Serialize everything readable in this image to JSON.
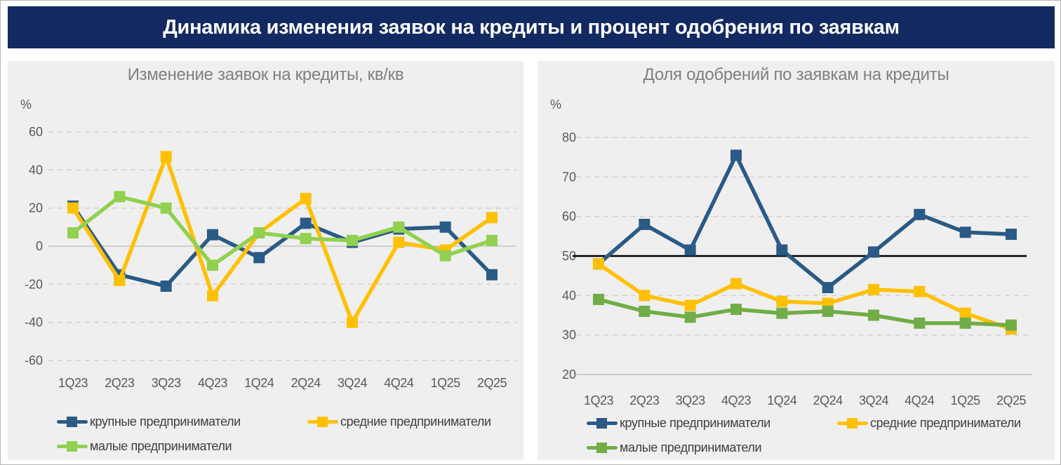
{
  "header": {
    "title": "Динамика изменения заявок на кредиты и процент одобрения по заявкам",
    "bg_color": "#132961",
    "text_color": "#FFFFFF"
  },
  "colors": {
    "panel_bg": "#EFEFEF",
    "grid_dashed": "#D2D2D2",
    "grid_solid": "#C4C4C4",
    "tick_text": "#595959",
    "title_text": "#7F7F7F",
    "legend_text": "#3F3F3F"
  },
  "chart_data": [
    {
      "type": "line",
      "title": "Изменение заявок на кредиты, кв/кв",
      "ylabel": "%",
      "grid": "dashed",
      "legend_position": "bottom",
      "categories": [
        "1Q23",
        "2Q23",
        "3Q23",
        "4Q23",
        "1Q24",
        "2Q24",
        "3Q24",
        "4Q24",
        "1Q25",
        "2Q25"
      ],
      "yticks": [
        60,
        40,
        20,
        0,
        -20,
        -40,
        -60
      ],
      "ylim": [
        -60,
        60
      ],
      "solid_tick": 0,
      "series": [
        {
          "name": "крупные предприниматели",
          "color": "#2A5A86",
          "values": [
            21,
            -15,
            -21,
            6,
            -6,
            12,
            2,
            9,
            10,
            -15
          ]
        },
        {
          "name": "средние предприниматели",
          "color": "#FFC000",
          "values": [
            20,
            -18,
            47,
            -26,
            7,
            25,
            -40,
            2,
            -2,
            15
          ]
        },
        {
          "name": "малые предприниматели",
          "color": "#92D050",
          "values": [
            7,
            26,
            20,
            -10,
            7,
            4,
            3,
            10,
            -5,
            3
          ]
        }
      ]
    },
    {
      "type": "line",
      "title": "Доля одобрений по заявкам на кредиты",
      "ylabel": "%",
      "grid": "dashed",
      "legend_position": "bottom",
      "categories": [
        "1Q23",
        "2Q23",
        "3Q23",
        "4Q23",
        "1Q24",
        "2Q24",
        "3Q24",
        "4Q24",
        "1Q25",
        "2Q25"
      ],
      "yticks": [
        80,
        70,
        60,
        50,
        40,
        30,
        20
      ],
      "ylim": [
        20,
        80
      ],
      "solid_tick": 20,
      "ref_line": {
        "value": 50,
        "color": "#000000"
      },
      "series": [
        {
          "name": "крупные предприниматели",
          "color": "#2A5A86",
          "values": [
            48,
            58,
            51.5,
            75.5,
            51.5,
            42,
            51,
            60.5,
            56,
            55.5
          ]
        },
        {
          "name": "средние предприниматели",
          "color": "#FFC000",
          "values": [
            48,
            40,
            37.5,
            43,
            38.5,
            38,
            41.5,
            41,
            35.5,
            31.5
          ]
        },
        {
          "name": "малые предприниматели",
          "color": "#70AD47",
          "values": [
            39,
            36,
            34.5,
            36.5,
            35.5,
            36,
            35,
            33,
            33,
            32.5
          ]
        }
      ]
    }
  ]
}
